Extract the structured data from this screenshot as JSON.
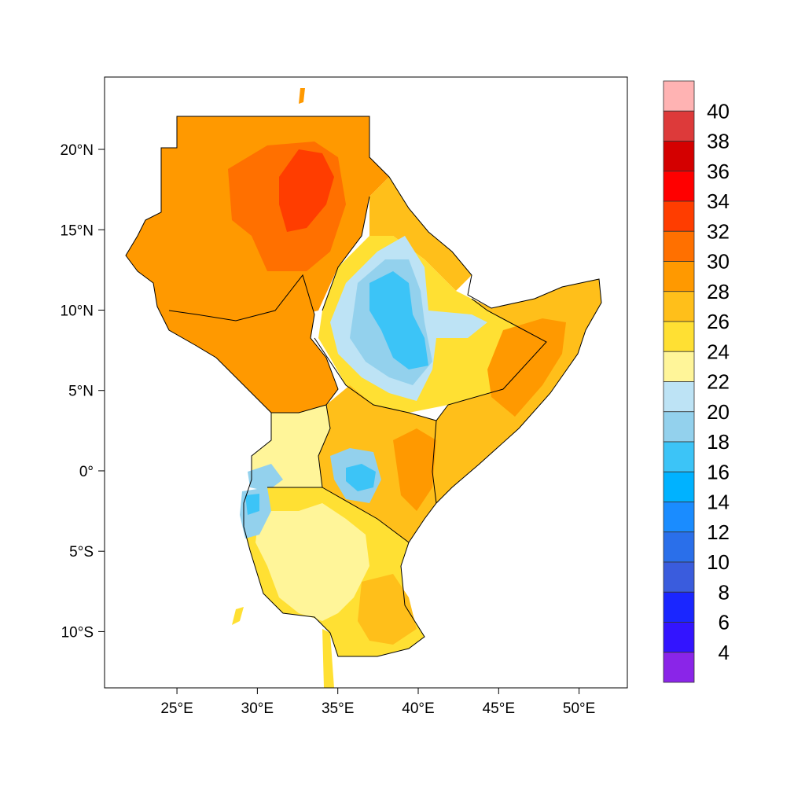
{
  "map": {
    "lon_ticks": [
      "25°E",
      "30°E",
      "35°E",
      "40°E",
      "45°E",
      "50°E"
    ],
    "lat_ticks": [
      "20°N",
      "15°N",
      "10°N",
      "5°N",
      "0°",
      "5°S",
      "10°S"
    ],
    "lon_values": [
      25,
      30,
      35,
      40,
      45,
      50
    ],
    "lat_values": [
      20,
      15,
      10,
      5,
      0,
      -5,
      -10
    ],
    "extent": {
      "lon": [
        20.5,
        53
      ],
      "lat": [
        -13.5,
        24.5
      ]
    }
  },
  "colorbar": {
    "labels": [
      "40",
      "38",
      "36",
      "34",
      "32",
      "30",
      "28",
      "26",
      "24",
      "22",
      "20",
      "18",
      "16",
      "14",
      "12",
      "10",
      "8",
      "6",
      "4"
    ],
    "colors_top_to_bottom": [
      "#ffb3b3",
      "#dd3a3a",
      "#d40000",
      "#ff0000",
      "#ff3d00",
      "#ff7000",
      "#ff9900",
      "#ffbf1a",
      "#ffe033",
      "#fff599",
      "#bde3f5",
      "#93d1ed",
      "#3cc4f7",
      "#00b2ff",
      "#1a8cff",
      "#2a6fea",
      "#3a5cdd",
      "#1a26ff",
      "#3314ff",
      "#8a25e8"
    ]
  }
}
